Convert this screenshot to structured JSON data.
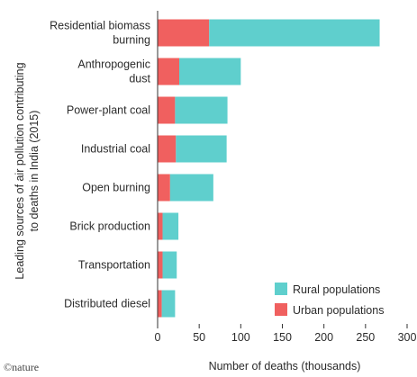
{
  "chart_data": {
    "type": "bar",
    "orientation": "horizontal",
    "stacked": true,
    "categories": [
      "Residential biomass burning",
      "Anthropogenic dust",
      "Power-plant coal",
      "Industrial coal",
      "Open burning",
      "Brick production",
      "Transportation",
      "Distributed diesel"
    ],
    "category_lines": [
      [
        "Residential biomass",
        "burning"
      ],
      [
        "Anthropogenic",
        "dust"
      ],
      [
        "Power-plant coal"
      ],
      [
        "Industrial coal"
      ],
      [
        "Open burning"
      ],
      [
        "Brick production"
      ],
      [
        "Transportation"
      ],
      [
        "Distributed diesel"
      ]
    ],
    "series": [
      {
        "name": "Urban populations",
        "color": "#f0605f",
        "values": [
          62,
          26,
          21,
          22,
          15,
          6,
          6,
          5
        ]
      },
      {
        "name": "Rural populations",
        "color": "#5fcfcd",
        "values": [
          205,
          74,
          63,
          61,
          52,
          19,
          17,
          16
        ]
      }
    ],
    "legend_order": [
      "Rural populations",
      "Urban populations"
    ],
    "xlabel": "Number of deaths (thousands)",
    "ylabel": "Leading sources of air pollution contributing to deaths in India (2015)",
    "ylabel_lines": [
      "Leading sources of air pollution contributing",
      "to deaths in India (2015)"
    ],
    "xlim": [
      0,
      300
    ],
    "xticks": [
      0,
      50,
      100,
      150,
      200,
      250,
      300
    ],
    "grid": false,
    "legend_position": "bottom-right"
  },
  "credit": "©nature"
}
